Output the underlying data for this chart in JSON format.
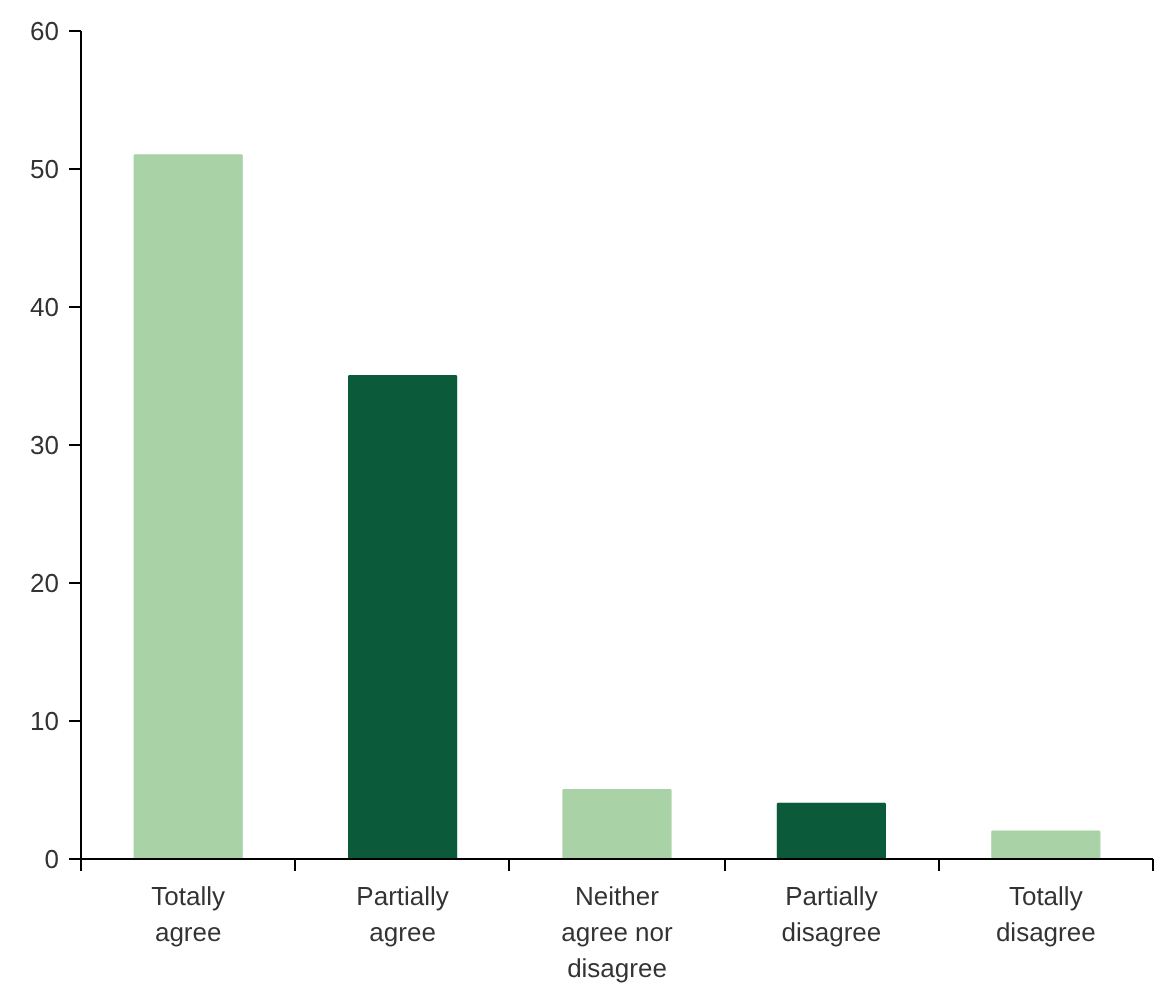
{
  "chart_data": {
    "type": "bar",
    "categories": [
      "Totally agree",
      "Partially agree",
      "Neither agree nor disagree",
      "Partially disagree",
      "Totally disagree"
    ],
    "values": [
      51,
      35,
      5,
      4,
      2
    ],
    "colors": [
      "#a9d3a6",
      "#0b5a3a",
      "#a9d3a6",
      "#0b5a3a",
      "#a9d3a6"
    ],
    "ylim": [
      0,
      60
    ],
    "yticks": [
      0,
      10,
      20,
      30,
      40,
      50,
      60
    ],
    "grid": false
  }
}
